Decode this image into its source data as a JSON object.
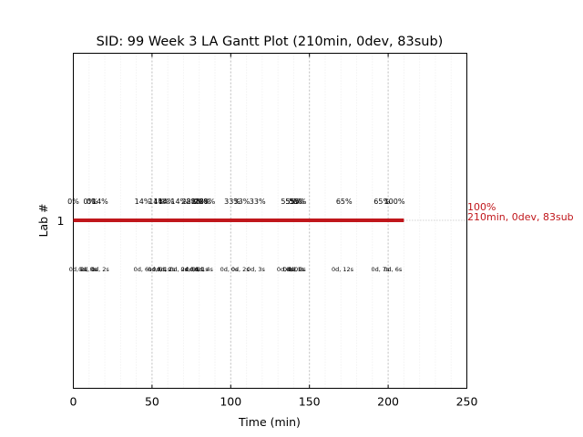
{
  "colors": {
    "bar": "#c0161b",
    "end_label": "#c0161b",
    "grid_major": "#bdbdbd",
    "grid_minor": "#ececec",
    "axis": "#000000"
  },
  "chart_data": {
    "type": "gantt",
    "title": "SID: 99 Week 3 LA Gantt Plot (210min, 0dev, 83sub)",
    "xlabel": "Time (min)",
    "ylabel": "Lab #",
    "xlim": [
      0,
      250
    ],
    "xticks": [
      "0",
      "50",
      "100",
      "150",
      "200",
      "250"
    ],
    "grid": true,
    "categories": [
      "1"
    ],
    "bars": [
      {
        "lab": "1",
        "start": 0,
        "end": 210
      }
    ],
    "end_label": {
      "line1": "100%",
      "line2": "210min, 0dev, 83sub"
    },
    "percent_labels": [
      {
        "x": 0,
        "text": "0%"
      },
      {
        "x": 10,
        "text": "0%"
      },
      {
        "x": 12,
        "text": "0%"
      },
      {
        "x": 17,
        "text": "14%"
      },
      {
        "x": 44,
        "text": "14%"
      },
      {
        "x": 53,
        "text": "14%"
      },
      {
        "x": 56,
        "text": "14%"
      },
      {
        "x": 59,
        "text": "14%"
      },
      {
        "x": 67,
        "text": "14%"
      },
      {
        "x": 74,
        "text": "28%"
      },
      {
        "x": 77,
        "text": "28%"
      },
      {
        "x": 80,
        "text": "28%"
      },
      {
        "x": 82,
        "text": "28%"
      },
      {
        "x": 85,
        "text": "28%"
      },
      {
        "x": 101,
        "text": "33%"
      },
      {
        "x": 107,
        "text": "33%"
      },
      {
        "x": 117,
        "text": "33%"
      },
      {
        "x": 137,
        "text": "55%"
      },
      {
        "x": 140,
        "text": "55%"
      },
      {
        "x": 142,
        "text": "55%"
      },
      {
        "x": 143,
        "text": "55%"
      },
      {
        "x": 172,
        "text": "65%"
      },
      {
        "x": 196,
        "text": "65%"
      },
      {
        "x": 204,
        "text": "100%"
      }
    ],
    "duration_labels": [
      {
        "x": 3,
        "text": "0d, 2s"
      },
      {
        "x": 9,
        "text": "0d, 0s"
      },
      {
        "x": 10,
        "text": "0d, 1s"
      },
      {
        "x": 17,
        "text": "0d, 2s"
      },
      {
        "x": 44,
        "text": "0d, 6s"
      },
      {
        "x": 53,
        "text": "0d, 0s"
      },
      {
        "x": 56,
        "text": "0d, 1s"
      },
      {
        "x": 59,
        "text": "0d, 2s"
      },
      {
        "x": 67,
        "text": "0d, 2s"
      },
      {
        "x": 74,
        "text": "0d, 0s"
      },
      {
        "x": 77,
        "text": "0d, 0s"
      },
      {
        "x": 80,
        "text": "0d, 1s"
      },
      {
        "x": 83,
        "text": "0d, 4s"
      },
      {
        "x": 99,
        "text": "0d, 0s"
      },
      {
        "x": 106,
        "text": "0d, 2s"
      },
      {
        "x": 116,
        "text": "0d, 3s"
      },
      {
        "x": 135,
        "text": "0d, 0s"
      },
      {
        "x": 139,
        "text": "0d, 0s"
      },
      {
        "x": 141,
        "text": "0d, 1s"
      },
      {
        "x": 142,
        "text": "0d, 3s"
      },
      {
        "x": 171,
        "text": "0d, 12s"
      },
      {
        "x": 195,
        "text": "0d, 7s"
      },
      {
        "x": 203,
        "text": "0d, 6s"
      }
    ]
  }
}
